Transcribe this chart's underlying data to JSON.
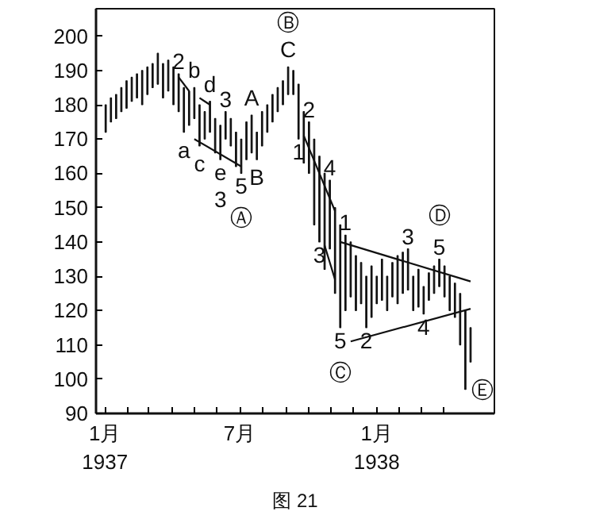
{
  "chart_data": {
    "type": "bar",
    "color": "#111111",
    "x": [
      "1937-01-02",
      "1937-01-09",
      "1937-01-16",
      "1937-01-23",
      "1937-01-30",
      "1937-02-06",
      "1937-02-13",
      "1937-02-20",
      "1937-02-27",
      "1937-03-06",
      "1937-03-13",
      "1937-03-20",
      "1937-03-27",
      "1937-04-03",
      "1937-04-10",
      "1937-04-17",
      "1937-04-24",
      "1937-05-01",
      "1937-05-08",
      "1937-05-15",
      "1937-05-22",
      "1937-05-29",
      "1937-06-05",
      "1937-06-12",
      "1937-06-19",
      "1937-06-26",
      "1937-07-03",
      "1937-07-10",
      "1937-07-17",
      "1937-07-24",
      "1937-07-31",
      "1937-08-07",
      "1937-08-14",
      "1937-08-21",
      "1937-08-28",
      "1937-09-04",
      "1937-09-11",
      "1937-09-18",
      "1937-09-25",
      "1937-10-02",
      "1937-10-09",
      "1937-10-16",
      "1937-10-23",
      "1937-10-30",
      "1937-11-06",
      "1937-11-13",
      "1937-11-20",
      "1937-11-27",
      "1937-12-04",
      "1937-12-11",
      "1937-12-18",
      "1937-12-25",
      "1938-01-01",
      "1938-01-08",
      "1938-01-15",
      "1938-01-22",
      "1938-01-29",
      "1938-02-05",
      "1938-02-12",
      "1938-02-19",
      "1938-02-26",
      "1938-03-05",
      "1938-03-12",
      "1938-03-19",
      "1938-03-26",
      "1938-04-02",
      "1938-04-09",
      "1938-04-16",
      "1938-04-23",
      "1938-04-30",
      "1938-05-07"
    ],
    "base": [
      172,
      175,
      176,
      178,
      179,
      181,
      182,
      180,
      183,
      185,
      186,
      182,
      184,
      180,
      178,
      172,
      174,
      176,
      168,
      170,
      172,
      166,
      164,
      170,
      168,
      162,
      160,
      164,
      166,
      164,
      168,
      172,
      175,
      178,
      180,
      183,
      183,
      170,
      163,
      160,
      145,
      140,
      132,
      138,
      125,
      115,
      120,
      124,
      120,
      122,
      115,
      118,
      122,
      123,
      120,
      124,
      122,
      125,
      126,
      120,
      121,
      119,
      123,
      125,
      127,
      124,
      120,
      118,
      110,
      97,
      105
    ],
    "values": [
      8,
      7,
      7,
      7,
      8,
      7,
      7,
      10,
      8,
      7,
      9,
      10,
      9,
      11,
      11,
      13,
      10,
      9,
      12,
      8,
      9,
      10,
      10,
      8,
      8,
      10,
      10,
      11,
      11,
      8,
      10,
      8,
      8,
      7,
      7,
      8,
      7,
      16,
      15,
      15,
      25,
      25,
      28,
      20,
      25,
      30,
      22,
      16,
      16,
      12,
      15,
      15,
      8,
      12,
      10,
      10,
      14,
      12,
      12,
      10,
      11,
      8,
      8,
      8,
      8,
      9,
      10,
      10,
      15,
      23,
      10
    ],
    "series": [
      {
        "type": "line",
        "color": "#111111",
        "x": [
          "1937-04-10",
          "1937-04-24"
        ],
        "values": [
          188,
          184
        ]
      },
      {
        "type": "line",
        "color": "#111111",
        "x": [
          "1937-05-08",
          "1937-05-22"
        ],
        "values": [
          182,
          180
        ]
      },
      {
        "type": "line",
        "color": "#111111",
        "x": [
          "1937-05-01",
          "1937-07-03"
        ],
        "values": [
          170,
          162
        ]
      },
      {
        "type": "line",
        "color": "#111111",
        "x": [
          "1937-09-25",
          "1937-11-06"
        ],
        "values": [
          171,
          149
        ]
      },
      {
        "type": "line",
        "color": "#111111",
        "x": [
          "1937-10-23",
          "1937-11-06"
        ],
        "values": [
          139,
          129
        ]
      },
      {
        "type": "line",
        "color": "#111111",
        "x": [
          "1937-11-13",
          "1938-05-07"
        ],
        "values": [
          140,
          128.5
        ]
      },
      {
        "type": "line",
        "color": "#111111",
        "x": [
          "1937-11-27",
          "1938-05-07"
        ],
        "values": [
          111,
          120.5
        ]
      }
    ],
    "xlim": [
      "1936-12-20",
      "1938-06-08"
    ],
    "ylim": [
      90,
      208
    ],
    "xticks": [
      {
        "value": "1937-01-01",
        "label": "1月\n1937"
      },
      {
        "value": "1937-02-01",
        "label": null
      },
      {
        "value": "1937-03-01",
        "label": null
      },
      {
        "value": "1937-04-01",
        "label": null
      },
      {
        "value": "1937-05-01",
        "label": null
      },
      {
        "value": "1937-06-01",
        "label": null
      },
      {
        "value": "1937-07-01",
        "label": "7月"
      },
      {
        "value": "1937-08-01",
        "label": null
      },
      {
        "value": "1937-09-01",
        "label": null
      },
      {
        "value": "1937-10-01",
        "label": null
      },
      {
        "value": "1937-11-01",
        "label": null
      },
      {
        "value": "1937-12-01",
        "label": null
      },
      {
        "value": "1938-01-01",
        "label": "1月\n1938"
      },
      {
        "value": "1938-02-01",
        "label": null
      },
      {
        "value": "1938-03-01",
        "label": null
      },
      {
        "value": "1938-04-01",
        "label": null
      }
    ],
    "yticks": [
      90,
      100,
      110,
      120,
      130,
      140,
      150,
      160,
      170,
      180,
      190,
      200
    ],
    "grid": false,
    "annotations": [
      {
        "text": "2",
        "x": "1937-04-10",
        "y": 189
      },
      {
        "text": "b",
        "x": "1937-05-01",
        "y": 185
      },
      {
        "text": "a",
        "x": "1937-04-17",
        "y": 172
      },
      {
        "text": "d",
        "x": "1937-05-22",
        "y": 181
      },
      {
        "text": "3",
        "x": "1937-06-12",
        "y": 178
      },
      {
        "text": "c",
        "x": "1937-05-08",
        "y": 168
      },
      {
        "text": "e",
        "x": "1937-06-05",
        "y": 164
      },
      {
        "text": "3",
        "x": "1937-06-05",
        "y": 164
      },
      {
        "text": "5",
        "x": "1937-07-03",
        "y": 160
      },
      {
        "text": "A",
        "x": "1937-07-17",
        "y": 177
      },
      {
        "text": "B",
        "x": "1937-07-24",
        "y": 164
      },
      {
        "text": "Ⓐ",
        "x": "1937-07-03",
        "y": 160
      },
      {
        "text": "C",
        "x": "1937-09-04",
        "y": 191
      },
      {
        "text": "Ⓑ",
        "x": "1937-09-04",
        "y": 191
      },
      {
        "text": "1",
        "x": "1937-09-18",
        "y": 170
      },
      {
        "text": "2",
        "x": "1937-10-02",
        "y": 175
      },
      {
        "text": "4",
        "x": "1937-10-30",
        "y": 158
      },
      {
        "text": "3",
        "x": "1937-10-16",
        "y": 140
      },
      {
        "text": "1",
        "x": "1937-11-20",
        "y": 142
      },
      {
        "text": "5",
        "x": "1937-11-13",
        "y": 115
      },
      {
        "text": "2",
        "x": "1937-12-18",
        "y": 115
      },
      {
        "text": "Ⓒ",
        "x": "1937-11-13",
        "y": 115
      },
      {
        "text": "3",
        "x": "1938-02-12",
        "y": 138
      },
      {
        "text": "5",
        "x": "1938-03-26",
        "y": 135
      },
      {
        "text": "4",
        "x": "1938-03-05",
        "y": 119
      },
      {
        "text": "Ⓓ",
        "x": "1938-03-26",
        "y": 135
      },
      {
        "text": "Ⓔ",
        "x": "1938-04-30",
        "y": 97
      },
      "图 21"
    ]
  }
}
